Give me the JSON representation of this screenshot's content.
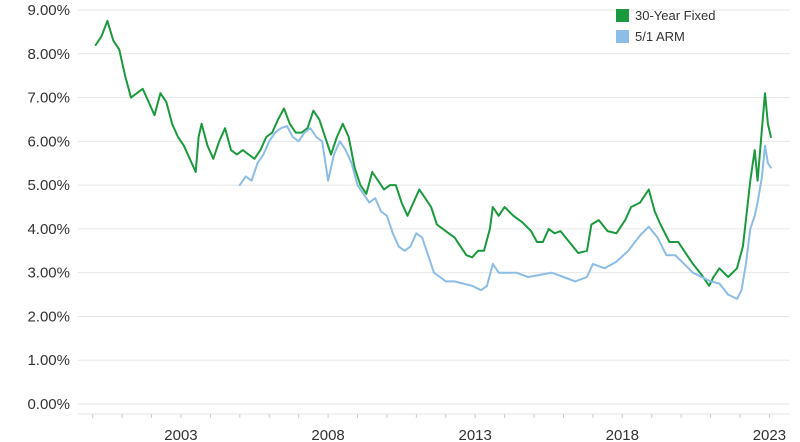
{
  "chart_data": {
    "type": "line",
    "title": "",
    "xlabel": "",
    "ylabel": "",
    "ylim": [
      0,
      9
    ],
    "xlim": [
      1999.5,
      2023.7
    ],
    "y_ticks": [
      0,
      1,
      2,
      3,
      4,
      5,
      6,
      7,
      8,
      9
    ],
    "y_tick_labels": [
      "0.00%",
      "1.00%",
      "2.00%",
      "3.00%",
      "4.00%",
      "5.00%",
      "6.00%",
      "7.00%",
      "8.00%",
      "9.00%"
    ],
    "x_ticks": [
      2003,
      2008,
      2013,
      2018,
      2023
    ],
    "x_tick_labels": [
      "2003",
      "2008",
      "2013",
      "2018",
      "2023"
    ],
    "grid": "horizontal",
    "legend_position": "top-right",
    "series": [
      {
        "name": "30-Year Fixed",
        "color": "#1a9a3c",
        "points": [
          [
            2000.1,
            8.2
          ],
          [
            2000.3,
            8.4
          ],
          [
            2000.5,
            8.75
          ],
          [
            2000.7,
            8.3
          ],
          [
            2000.9,
            8.1
          ],
          [
            2001.1,
            7.5
          ],
          [
            2001.3,
            7.0
          ],
          [
            2001.5,
            7.1
          ],
          [
            2001.7,
            7.2
          ],
          [
            2001.9,
            6.9
          ],
          [
            2002.1,
            6.6
          ],
          [
            2002.3,
            7.1
          ],
          [
            2002.5,
            6.9
          ],
          [
            2002.7,
            6.4
          ],
          [
            2002.9,
            6.1
          ],
          [
            2003.1,
            5.9
          ],
          [
            2003.3,
            5.6
          ],
          [
            2003.5,
            5.3
          ],
          [
            2003.6,
            6.1
          ],
          [
            2003.7,
            6.4
          ],
          [
            2003.9,
            5.9
          ],
          [
            2004.1,
            5.6
          ],
          [
            2004.3,
            6.0
          ],
          [
            2004.5,
            6.3
          ],
          [
            2004.7,
            5.8
          ],
          [
            2004.9,
            5.7
          ],
          [
            2005.1,
            5.8
          ],
          [
            2005.3,
            5.7
          ],
          [
            2005.5,
            5.6
          ],
          [
            2005.7,
            5.8
          ],
          [
            2005.9,
            6.1
          ],
          [
            2006.1,
            6.2
          ],
          [
            2006.3,
            6.5
          ],
          [
            2006.5,
            6.75
          ],
          [
            2006.7,
            6.4
          ],
          [
            2006.9,
            6.2
          ],
          [
            2007.1,
            6.2
          ],
          [
            2007.3,
            6.3
          ],
          [
            2007.5,
            6.7
          ],
          [
            2007.7,
            6.5
          ],
          [
            2007.9,
            6.1
          ],
          [
            2008.1,
            5.7
          ],
          [
            2008.3,
            6.1
          ],
          [
            2008.5,
            6.4
          ],
          [
            2008.7,
            6.1
          ],
          [
            2008.9,
            5.4
          ],
          [
            2009.1,
            5.0
          ],
          [
            2009.3,
            4.8
          ],
          [
            2009.5,
            5.3
          ],
          [
            2009.7,
            5.1
          ],
          [
            2009.9,
            4.9
          ],
          [
            2010.1,
            5.0
          ],
          [
            2010.3,
            5.0
          ],
          [
            2010.5,
            4.6
          ],
          [
            2010.7,
            4.3
          ],
          [
            2010.9,
            4.6
          ],
          [
            2011.1,
            4.9
          ],
          [
            2011.3,
            4.7
          ],
          [
            2011.5,
            4.5
          ],
          [
            2011.7,
            4.1
          ],
          [
            2011.9,
            4.0
          ],
          [
            2012.1,
            3.9
          ],
          [
            2012.3,
            3.8
          ],
          [
            2012.5,
            3.6
          ],
          [
            2012.7,
            3.4
          ],
          [
            2012.9,
            3.35
          ],
          [
            2013.1,
            3.5
          ],
          [
            2013.3,
            3.5
          ],
          [
            2013.5,
            4.0
          ],
          [
            2013.6,
            4.5
          ],
          [
            2013.8,
            4.3
          ],
          [
            2014.0,
            4.5
          ],
          [
            2014.3,
            4.3
          ],
          [
            2014.6,
            4.15
          ],
          [
            2014.9,
            3.95
          ],
          [
            2015.1,
            3.7
          ],
          [
            2015.3,
            3.7
          ],
          [
            2015.5,
            4.0
          ],
          [
            2015.7,
            3.9
          ],
          [
            2015.9,
            3.95
          ],
          [
            2016.2,
            3.7
          ],
          [
            2016.5,
            3.45
          ],
          [
            2016.8,
            3.5
          ],
          [
            2016.95,
            4.1
          ],
          [
            2017.2,
            4.2
          ],
          [
            2017.5,
            3.95
          ],
          [
            2017.8,
            3.9
          ],
          [
            2018.1,
            4.2
          ],
          [
            2018.3,
            4.5
          ],
          [
            2018.6,
            4.6
          ],
          [
            2018.9,
            4.9
          ],
          [
            2019.1,
            4.4
          ],
          [
            2019.3,
            4.1
          ],
          [
            2019.6,
            3.7
          ],
          [
            2019.9,
            3.7
          ],
          [
            2020.1,
            3.5
          ],
          [
            2020.4,
            3.2
          ],
          [
            2020.7,
            2.95
          ],
          [
            2020.95,
            2.7
          ],
          [
            2021.1,
            2.9
          ],
          [
            2021.3,
            3.1
          ],
          [
            2021.6,
            2.9
          ],
          [
            2021.9,
            3.1
          ],
          [
            2022.1,
            3.6
          ],
          [
            2022.2,
            4.2
          ],
          [
            2022.35,
            5.1
          ],
          [
            2022.5,
            5.8
          ],
          [
            2022.6,
            5.1
          ],
          [
            2022.75,
            6.3
          ],
          [
            2022.85,
            7.1
          ],
          [
            2022.95,
            6.4
          ],
          [
            2023.05,
            6.1
          ]
        ]
      },
      {
        "name": "5/1 ARM",
        "color": "#8bbde6",
        "points": [
          [
            2005.0,
            5.0
          ],
          [
            2005.2,
            5.2
          ],
          [
            2005.4,
            5.1
          ],
          [
            2005.6,
            5.5
          ],
          [
            2005.8,
            5.7
          ],
          [
            2006.0,
            6.0
          ],
          [
            2006.2,
            6.2
          ],
          [
            2006.4,
            6.3
          ],
          [
            2006.6,
            6.35
          ],
          [
            2006.8,
            6.1
          ],
          [
            2007.0,
            6.0
          ],
          [
            2007.2,
            6.2
          ],
          [
            2007.4,
            6.3
          ],
          [
            2007.6,
            6.1
          ],
          [
            2007.8,
            6.0
          ],
          [
            2008.0,
            5.1
          ],
          [
            2008.2,
            5.7
          ],
          [
            2008.4,
            6.0
          ],
          [
            2008.6,
            5.8
          ],
          [
            2008.8,
            5.5
          ],
          [
            2009.0,
            5.0
          ],
          [
            2009.2,
            4.8
          ],
          [
            2009.4,
            4.6
          ],
          [
            2009.6,
            4.7
          ],
          [
            2009.8,
            4.4
          ],
          [
            2010.0,
            4.3
          ],
          [
            2010.2,
            3.9
          ],
          [
            2010.4,
            3.6
          ],
          [
            2010.6,
            3.5
          ],
          [
            2010.8,
            3.6
          ],
          [
            2011.0,
            3.9
          ],
          [
            2011.2,
            3.8
          ],
          [
            2011.4,
            3.4
          ],
          [
            2011.6,
            3.0
          ],
          [
            2011.8,
            2.9
          ],
          [
            2012.0,
            2.8
          ],
          [
            2012.3,
            2.8
          ],
          [
            2012.6,
            2.75
          ],
          [
            2012.9,
            2.7
          ],
          [
            2013.2,
            2.6
          ],
          [
            2013.4,
            2.7
          ],
          [
            2013.6,
            3.2
          ],
          [
            2013.8,
            3.0
          ],
          [
            2014.0,
            3.0
          ],
          [
            2014.4,
            3.0
          ],
          [
            2014.8,
            2.9
          ],
          [
            2015.2,
            2.95
          ],
          [
            2015.6,
            3.0
          ],
          [
            2016.0,
            2.9
          ],
          [
            2016.4,
            2.8
          ],
          [
            2016.8,
            2.9
          ],
          [
            2017.0,
            3.2
          ],
          [
            2017.4,
            3.1
          ],
          [
            2017.8,
            3.25
          ],
          [
            2018.2,
            3.5
          ],
          [
            2018.6,
            3.85
          ],
          [
            2018.9,
            4.05
          ],
          [
            2019.2,
            3.8
          ],
          [
            2019.5,
            3.4
          ],
          [
            2019.8,
            3.4
          ],
          [
            2020.1,
            3.2
          ],
          [
            2020.4,
            3.0
          ],
          [
            2020.7,
            2.9
          ],
          [
            2021.0,
            2.8
          ],
          [
            2021.3,
            2.75
          ],
          [
            2021.6,
            2.5
          ],
          [
            2021.9,
            2.4
          ],
          [
            2022.05,
            2.6
          ],
          [
            2022.2,
            3.2
          ],
          [
            2022.35,
            4.0
          ],
          [
            2022.5,
            4.3
          ],
          [
            2022.6,
            4.6
          ],
          [
            2022.75,
            5.2
          ],
          [
            2022.85,
            5.9
          ],
          [
            2022.95,
            5.5
          ],
          [
            2023.05,
            5.4
          ]
        ]
      }
    ]
  }
}
